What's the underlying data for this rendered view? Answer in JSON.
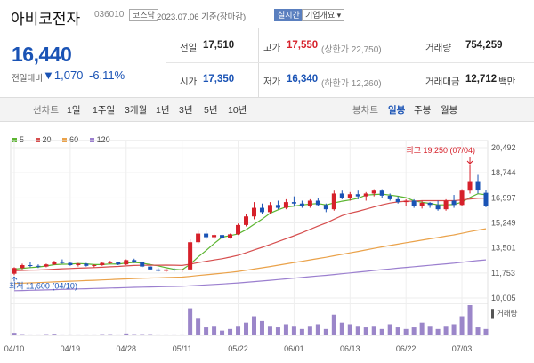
{
  "header": {
    "title": "아비코전자",
    "code": "036010",
    "market": "코스닥",
    "date": "2023.07.06 기준(장마감)",
    "realtime_label": "실시간",
    "company_info_label": "기업개요 ▾"
  },
  "price": {
    "current": "16,440",
    "change_label": "전일대비",
    "change_value": "▼1,070",
    "change_pct": "-6.11%"
  },
  "stats": {
    "prev_label": "전일",
    "prev_value": "17,510",
    "high_label": "고가",
    "high_value": "17,550",
    "upper_limit": "(상한가 22,750)",
    "volume_label": "거래량",
    "volume_value": "754,259",
    "open_label": "시가",
    "open_value": "17,350",
    "low_label": "저가",
    "low_value": "16,340",
    "lower_limit": "(하한가 12,260)",
    "amount_label": "거래대금",
    "amount_value": "12,712",
    "amount_unit": "백만"
  },
  "period_bar": {
    "line_chart_label": "선차트",
    "periods": [
      "1일",
      "1주일",
      "3개월",
      "1년",
      "3년",
      "5년",
      "10년"
    ],
    "candle_label": "봉차트",
    "candle_types": [
      "일봉",
      "주봉",
      "월봉"
    ],
    "active_candle": "일봉"
  },
  "colors": {
    "up": "#d6202a",
    "down": "#1a53b5",
    "ma5": "#5cb531",
    "ma20": "#d64e4e",
    "ma60": "#eaa24a",
    "ma120": "#9b7fcf",
    "volume": "#9b86c9"
  },
  "chart_data": {
    "type": "candlestick",
    "legend": [
      {
        "name": "5",
        "color": "#5cb531"
      },
      {
        "name": "20",
        "color": "#d64e4e"
      },
      {
        "name": "60",
        "color": "#eaa24a"
      },
      {
        "name": "120",
        "color": "#9b7fcf"
      }
    ],
    "y_ticks": [
      "20,492",
      "18,744",
      "16,997",
      "15,249",
      "13,501",
      "11,753",
      "10,005"
    ],
    "ylim": [
      10005,
      20492
    ],
    "x_ticks": [
      "04/10",
      "04/19",
      "04/28",
      "05/11",
      "05/22",
      "06/01",
      "06/13",
      "06/22",
      "07/03"
    ],
    "x_tick_index": [
      0,
      7,
      14,
      21,
      28,
      35,
      42,
      49,
      56
    ],
    "max_annotation": "최고 19,250 (07/04)",
    "min_annotation": "최저 11,600 (04/10)",
    "volume_label": "거래량",
    "candles": [
      [
        11700,
        12150,
        11600,
        12100
      ],
      [
        12100,
        12400,
        12000,
        12300
      ],
      [
        12300,
        12500,
        12150,
        12250
      ],
      [
        12250,
        12350,
        12100,
        12200
      ],
      [
        12200,
        12400,
        12150,
        12350
      ],
      [
        12350,
        12600,
        12300,
        12550
      ],
      [
        12550,
        12700,
        12400,
        12450
      ],
      [
        12450,
        12550,
        12250,
        12300
      ],
      [
        12300,
        12450,
        12200,
        12400
      ],
      [
        12400,
        12450,
        12200,
        12250
      ],
      [
        12250,
        12350,
        12150,
        12300
      ],
      [
        12300,
        12500,
        12250,
        12450
      ],
      [
        12450,
        12600,
        12400,
        12500
      ],
      [
        12500,
        12550,
        12300,
        12350
      ],
      [
        12350,
        12700,
        12300,
        12650
      ],
      [
        12650,
        12750,
        12450,
        12500
      ],
      [
        12500,
        12550,
        12150,
        12200
      ],
      [
        12200,
        12250,
        11950,
        12000
      ],
      [
        12000,
        12100,
        11850,
        11900
      ],
      [
        11900,
        12050,
        11800,
        12000
      ],
      [
        12000,
        12100,
        11850,
        11950
      ],
      [
        11950,
        12050,
        11800,
        12000
      ],
      [
        12000,
        14100,
        11950,
        13900
      ],
      [
        13900,
        14700,
        13800,
        14500
      ],
      [
        14500,
        14700,
        14100,
        14250
      ],
      [
        14250,
        14500,
        14100,
        14400
      ],
      [
        14400,
        14450,
        14100,
        14200
      ],
      [
        14200,
        14500,
        14150,
        14450
      ],
      [
        14450,
        15200,
        14400,
        15100
      ],
      [
        15100,
        15900,
        15000,
        15700
      ],
      [
        15700,
        16700,
        15500,
        16300
      ],
      [
        16300,
        16600,
        15900,
        16000
      ],
      [
        16000,
        16700,
        15900,
        16500
      ],
      [
        16500,
        16800,
        16200,
        16300
      ],
      [
        16300,
        16900,
        16200,
        16700
      ],
      [
        16700,
        17100,
        16400,
        16600
      ],
      [
        16600,
        16800,
        16300,
        16400
      ],
      [
        16400,
        16900,
        16300,
        16800
      ],
      [
        16800,
        17000,
        16400,
        16500
      ],
      [
        16500,
        16600,
        16000,
        16200
      ],
      [
        16200,
        17500,
        16100,
        17300
      ],
      [
        17300,
        17500,
        16900,
        17000
      ],
      [
        17000,
        17400,
        16800,
        17250
      ],
      [
        17250,
        17500,
        16900,
        17100
      ],
      [
        17100,
        17400,
        16800,
        17300
      ],
      [
        17300,
        17600,
        17100,
        17500
      ],
      [
        17500,
        17600,
        17000,
        17150
      ],
      [
        17150,
        17300,
        16800,
        16900
      ],
      [
        16900,
        17100,
        16600,
        16700
      ],
      [
        16700,
        16900,
        16400,
        16800
      ],
      [
        16800,
        16900,
        16300,
        16400
      ],
      [
        16400,
        16800,
        16250,
        16650
      ],
      [
        16650,
        16700,
        16300,
        16500
      ],
      [
        16500,
        16800,
        16100,
        16200
      ],
      [
        16200,
        16900,
        16100,
        16800
      ],
      [
        16800,
        17200,
        16300,
        16500
      ],
      [
        16500,
        17600,
        16400,
        17500
      ],
      [
        17500,
        19250,
        17300,
        18100
      ],
      [
        18100,
        18600,
        17300,
        17510
      ],
      [
        17350,
        17550,
        16340,
        16440
      ]
    ],
    "volumes": [
      8,
      4,
      3,
      3,
      4,
      5,
      3,
      3,
      3,
      3,
      3,
      4,
      4,
      3,
      6,
      4,
      4,
      4,
      3,
      3,
      3,
      3,
      85,
      55,
      25,
      30,
      15,
      20,
      30,
      40,
      60,
      45,
      30,
      25,
      35,
      30,
      20,
      30,
      35,
      20,
      65,
      40,
      35,
      30,
      25,
      30,
      20,
      35,
      25,
      20,
      25,
      40,
      30,
      20,
      30,
      35,
      60,
      95,
      25,
      20
    ]
  }
}
